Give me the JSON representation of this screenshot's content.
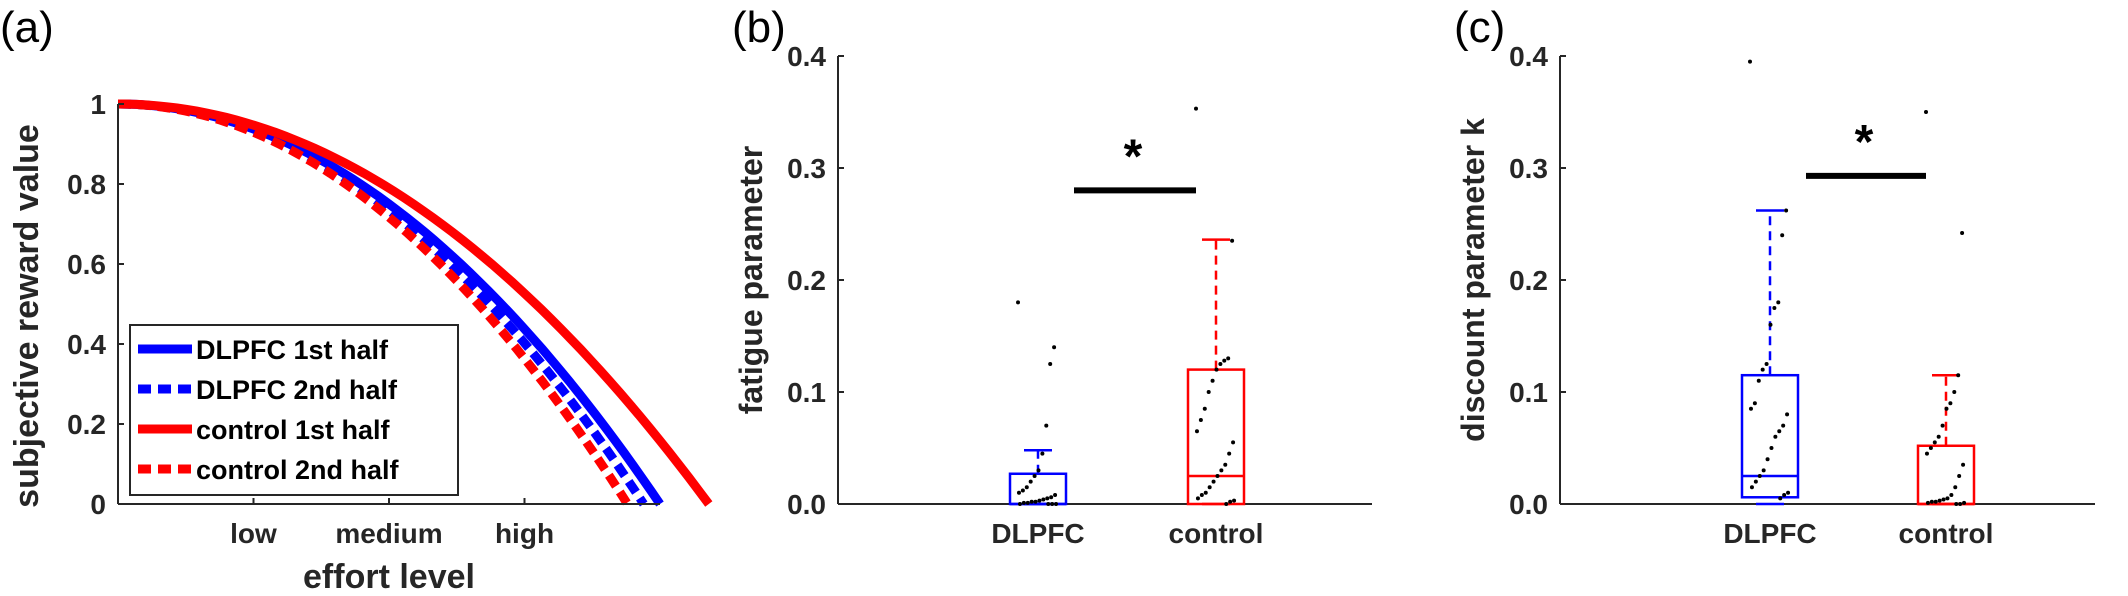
{
  "chart_data": [
    {
      "panel_label": "(a)",
      "type": "line",
      "xlabel": "effort level",
      "ylabel": "subjective reward value",
      "x_tick_labels": [
        "low",
        "medium",
        "high"
      ],
      "x_tick_positions": [
        0.25,
        0.5,
        0.75
      ],
      "xlim": [
        0,
        1
      ],
      "ylim": [
        0,
        1
      ],
      "y_ticks": [
        0,
        0.2,
        0.4,
        0.6,
        0.8,
        1
      ],
      "y_tick_labels": [
        "0",
        "0.2",
        "0.4",
        "0.6",
        "0.8",
        "1"
      ],
      "legend_placement": "bottom-left",
      "series": [
        {
          "name": "DLPFC 1st half",
          "color": "#0000ff",
          "dash": "solid",
          "x_at_zero": 1.0
        },
        {
          "name": "DLPFC 2nd half",
          "color": "#0000ff",
          "dash": "dotted",
          "x_at_zero": 0.97
        },
        {
          "name": "control 1st half",
          "color": "#ff0000",
          "dash": "solid",
          "x_at_zero": 1.09
        },
        {
          "name": "control 2nd half",
          "color": "#ff0000",
          "dash": "dotted",
          "x_at_zero": 0.94
        }
      ]
    },
    {
      "panel_label": "(b)",
      "type": "box",
      "ylabel": "fatigue parameter",
      "categories": [
        "DLPFC",
        "control"
      ],
      "ylim": [
        0,
        0.4
      ],
      "y_ticks": [
        0,
        0.1,
        0.2,
        0.3,
        0.4
      ],
      "y_tick_labels": [
        "0.0",
        "0.1",
        "0.2",
        "0.3",
        "0.4"
      ],
      "significance": {
        "label": "*",
        "y": 0.28
      },
      "boxes": [
        {
          "name": "DLPFC",
          "color": "#0000ff",
          "min": 0.0,
          "q1": 0.0,
          "median": 0.0,
          "q3": 0.027,
          "whisker_high": 0.048,
          "points": [
            0.18,
            0.14,
            0.125,
            0.07,
            0.045,
            0.03,
            0.025,
            0.02,
            0.015,
            0.012,
            0.01,
            0.008,
            0.006,
            0.005,
            0.004,
            0.003,
            0.002,
            0.002,
            0.001,
            0.001,
            0.0,
            0.0,
            0.0,
            0.0
          ]
        },
        {
          "name": "control",
          "color": "#ff0000",
          "min": 0.0,
          "q1": 0.0,
          "median": 0.025,
          "q3": 0.12,
          "whisker_high": 0.236,
          "points": [
            0.353,
            0.235,
            0.13,
            0.128,
            0.125,
            0.12,
            0.11,
            0.1,
            0.085,
            0.075,
            0.065,
            0.055,
            0.045,
            0.035,
            0.03,
            0.025,
            0.02,
            0.015,
            0.01,
            0.008,
            0.005,
            0.003,
            0.002,
            0.0
          ]
        }
      ]
    },
    {
      "panel_label": "(c)",
      "type": "box",
      "ylabel": "discount parameter k",
      "categories": [
        "DLPFC",
        "control"
      ],
      "ylim": [
        0,
        0.4
      ],
      "y_ticks": [
        0,
        0.1,
        0.2,
        0.3,
        0.4
      ],
      "y_tick_labels": [
        "0.0",
        "0.1",
        "0.2",
        "0.3",
        "0.4"
      ],
      "significance": {
        "label": "*",
        "y": 0.293
      },
      "boxes": [
        {
          "name": "DLPFC",
          "color": "#0000ff",
          "min": 0.0,
          "q1": 0.006,
          "median": 0.025,
          "q3": 0.115,
          "whisker_high": 0.262,
          "points": [
            0.395,
            0.262,
            0.24,
            0.18,
            0.175,
            0.16,
            0.125,
            0.12,
            0.11,
            0.09,
            0.085,
            0.08,
            0.07,
            0.065,
            0.06,
            0.05,
            0.04,
            0.03,
            0.025,
            0.02,
            0.015,
            0.01,
            0.008,
            0.005
          ]
        },
        {
          "name": "control",
          "color": "#ff0000",
          "min": 0.0,
          "q1": 0.0,
          "median": 0.0,
          "q3": 0.052,
          "whisker_high": 0.115,
          "points": [
            0.35,
            0.242,
            0.115,
            0.1,
            0.09,
            0.085,
            0.07,
            0.06,
            0.055,
            0.05,
            0.045,
            0.035,
            0.025,
            0.015,
            0.008,
            0.005,
            0.004,
            0.003,
            0.002,
            0.002,
            0.001,
            0.001,
            0.0,
            0.0
          ]
        }
      ]
    }
  ]
}
